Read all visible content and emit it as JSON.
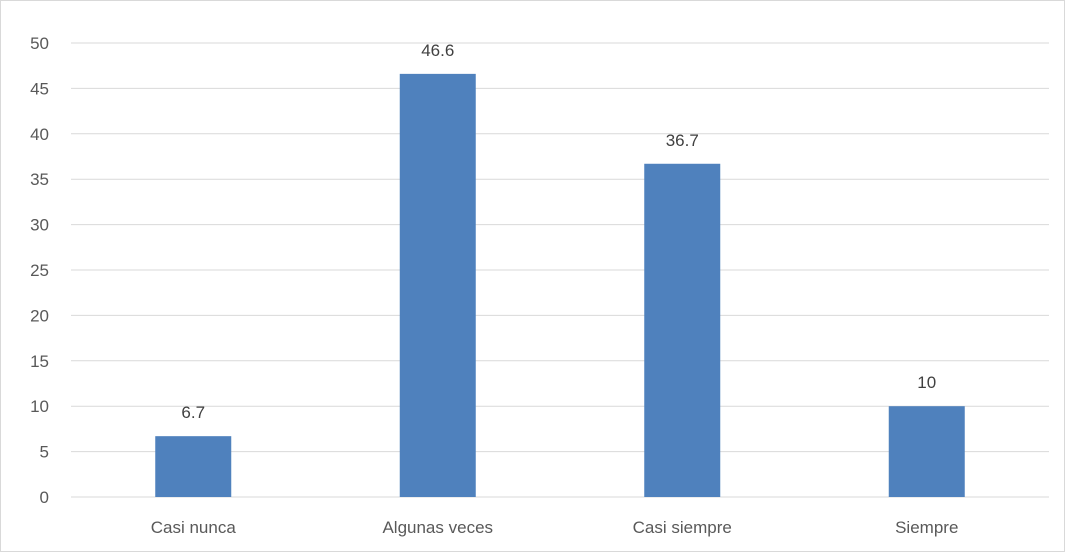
{
  "chart_data": {
    "type": "bar",
    "categories": [
      "Casi nunca",
      "Algunas veces",
      "Casi siempre",
      "Siempre"
    ],
    "values": [
      6.7,
      46.6,
      36.7,
      10
    ],
    "data_labels": [
      "6.7",
      "46.6",
      "36.7",
      "10"
    ],
    "y_ticks": [
      "0",
      "5",
      "10",
      "15",
      "20",
      "25",
      "30",
      "35",
      "40",
      "45",
      "50"
    ],
    "ylim": [
      0,
      50
    ],
    "ytick_step": 5,
    "grid": true,
    "legend": "none",
    "bar_color": "#4f81bd",
    "grid_color": "#d9d9d9"
  }
}
